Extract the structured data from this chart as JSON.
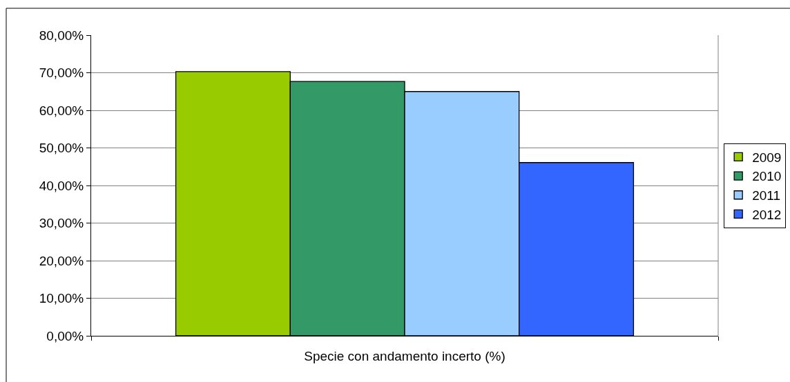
{
  "chart_data": {
    "type": "bar",
    "categories": [
      "Specie con andamento incerto (%)"
    ],
    "series": [
      {
        "name": "2009",
        "color": "#99cc00",
        "values": [
          70.3
        ]
      },
      {
        "name": "2010",
        "color": "#339966",
        "values": [
          67.7
        ]
      },
      {
        "name": "2011",
        "color": "#99ccff",
        "values": [
          65.0
        ]
      },
      {
        "name": "2012",
        "color": "#3366ff",
        "values": [
          46.1
        ]
      }
    ],
    "ylim": [
      0,
      80
    ],
    "yticks": [
      {
        "value": 0,
        "label": "0,00%"
      },
      {
        "value": 10,
        "label": "10,00%"
      },
      {
        "value": 20,
        "label": "20,00%"
      },
      {
        "value": 30,
        "label": "30,00%"
      },
      {
        "value": 40,
        "label": "40,00%"
      },
      {
        "value": 50,
        "label": "50,00%"
      },
      {
        "value": 60,
        "label": "60,00%"
      },
      {
        "value": 70,
        "label": "70,00%"
      },
      {
        "value": 80,
        "label": "80,00%"
      }
    ],
    "grid": "y",
    "legend": "right"
  }
}
